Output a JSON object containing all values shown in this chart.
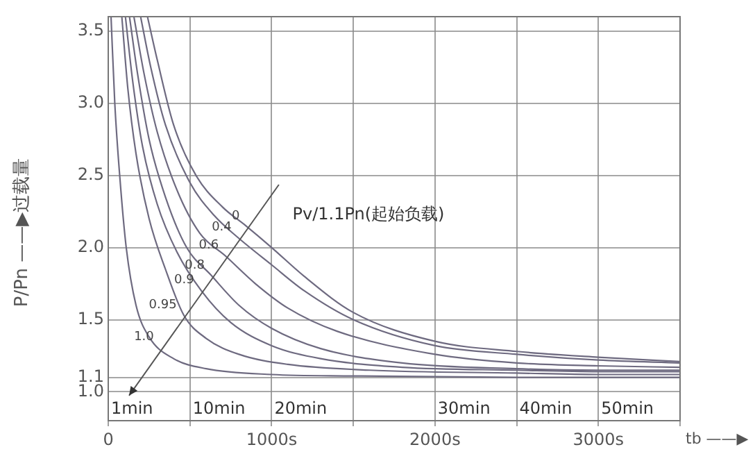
{
  "chart_data": {
    "type": "line",
    "xlabel": "tb ——▶",
    "ylabel": "P/Pn ——▶过载量",
    "xlim": [
      0,
      3500
    ],
    "xticks": [
      0,
      {
        "value": 500,
        "label": null
      },
      {
        "value": 1000,
        "label": "1000s"
      },
      {
        "value": 1500,
        "label": null
      },
      {
        "value": 2000,
        "label": "2000s"
      },
      {
        "value": 2500,
        "label": null
      },
      {
        "value": 3000,
        "label": "3000s"
      },
      {
        "value": 3500,
        "label": null
      }
    ],
    "ylim": [
      0.8,
      3.6
    ],
    "yticks": [
      {
        "value": 1,
        "label": "1.0"
      },
      1.1,
      1.5,
      {
        "value": 2,
        "label": "2.0"
      },
      2.5,
      {
        "value": 3,
        "label": "3.0"
      },
      3.5
    ],
    "grid": true,
    "marker": "none",
    "line_style": "solid",
    "annotations": [
      "Pv/1.1Pn(起始负载)",
      "1min",
      "10min",
      "20min",
      "30min",
      "40min",
      "50min"
    ],
    "series": [
      {
        "name": "0",
        "color": "#6e6a80",
        "x": [
          240,
          300,
          400,
          537,
          700,
          843,
          1000,
          1200,
          1500,
          2000,
          2500,
          3000,
          3500
        ],
        "values": [
          3.6,
          3.3,
          2.85,
          2.5,
          2.28,
          2.15,
          2.0,
          1.8,
          1.55,
          1.35,
          1.28,
          1.24,
          1.21
        ]
      },
      {
        "name": "0.4",
        "color": "#6e6a80",
        "x": [
          198,
          260,
          350,
          500,
          650,
          793,
          1000,
          1200,
          1500,
          2000,
          2500,
          3000,
          3500
        ],
        "values": [
          3.6,
          3.25,
          2.85,
          2.45,
          2.22,
          2.07,
          1.88,
          1.7,
          1.5,
          1.32,
          1.26,
          1.22,
          1.2
        ]
      },
      {
        "name": "0.6",
        "color": "#6e6a80",
        "x": [
          157,
          220,
          300,
          420,
          560,
          719,
          900,
          1100,
          1400,
          2000,
          2500,
          3000,
          3500
        ],
        "values": [
          3.6,
          3.2,
          2.8,
          2.4,
          2.1,
          1.94,
          1.75,
          1.58,
          1.42,
          1.26,
          1.2,
          1.18,
          1.17
        ]
      },
      {
        "name": "0.8",
        "color": "#6e6a80",
        "x": [
          130,
          180,
          250,
          350,
          480,
          628,
          800,
          1000,
          1300,
          1800,
          2500,
          3000,
          3500
        ],
        "values": [
          3.6,
          3.2,
          2.75,
          2.35,
          2.0,
          1.81,
          1.6,
          1.44,
          1.3,
          1.2,
          1.16,
          1.15,
          1.15
        ]
      },
      {
        "name": "0.9",
        "color": "#6e6a80",
        "x": [
          105,
          150,
          210,
          300,
          420,
          570,
          750,
          1000,
          1300,
          1800,
          2500,
          3000,
          3500
        ],
        "values": [
          3.6,
          3.15,
          2.7,
          2.3,
          1.97,
          1.7,
          1.48,
          1.32,
          1.23,
          1.17,
          1.15,
          1.14,
          1.14
        ]
      },
      {
        "name": "0.95",
        "color": "#6e6a80",
        "x": [
          83,
          120,
          170,
          250,
          350,
          463,
          600,
          800,
          1100,
          1600,
          2500,
          3000,
          3500
        ],
        "values": [
          3.6,
          3.1,
          2.65,
          2.2,
          1.85,
          1.53,
          1.37,
          1.26,
          1.19,
          1.15,
          1.13,
          1.12,
          1.12
        ]
      },
      {
        "name": "1.0",
        "color": "#6e6a80",
        "x": [
          17,
          40,
          70,
          110,
          170,
          250,
          400,
          600,
          1000,
          1500,
          2500,
          3500
        ],
        "values": [
          3.6,
          3.0,
          2.5,
          2.0,
          1.6,
          1.38,
          1.23,
          1.16,
          1.12,
          1.11,
          1.1,
          1.1
        ]
      }
    ]
  }
}
